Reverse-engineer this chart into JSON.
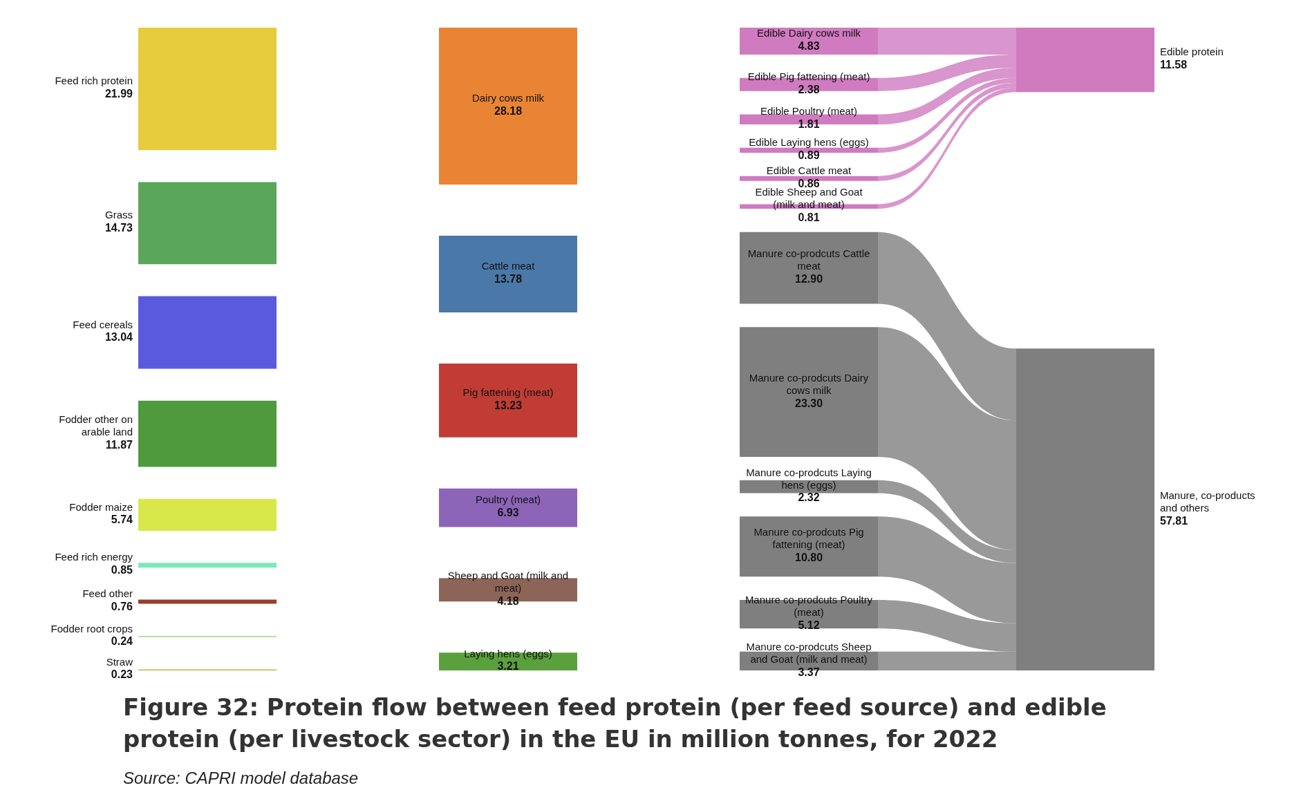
{
  "chart_data": {
    "type": "other",
    "title": "Figure 32: Protein flow between feed protein (per feed source) and edible protein (per livestock sector) in the EU in million tonnes, for 2022",
    "categories": [
      "Feed rich protein",
      "Grass",
      "Feed cereals",
      "Fodder other on arable land",
      "Fodder maize",
      "Feed rich energy",
      "Feed other",
      "Fodder root crops",
      "Straw",
      "Dairy cows milk",
      "Cattle meat",
      "Pig fattening (meat)",
      "Poultry (meat)",
      "Sheep and Goat (milk and meat)",
      "Laying hens (eggs)",
      "Edible Dairy cows milk",
      "Edible Pig fattening (meat)",
      "Edible Poultry (meat)",
      "Edible Laying hens (eggs)",
      "Edible Cattle meat",
      "Edible Sheep and Goat (milk and meat)",
      "Manure co-prodcuts Cattle meat",
      "Manure co-prodcuts Dairy cows milk",
      "Manure co-prodcuts Laying hens (eggs)",
      "Manure co-prodcuts Pig fattening (meat)",
      "Manure co-prodcuts Poultry (meat)",
      "Manure co-prodcuts Sheep and Goat (milk and meat)",
      "Edible protein",
      "Manure, co-products and others"
    ],
    "series": [
      {
        "values": [
          21.99,
          14.73,
          13.04,
          11.87,
          5.74,
          0.85,
          0.76,
          0.24,
          0.23,
          null,
          null,
          null,
          null,
          null,
          null,
          null,
          null,
          null,
          null,
          null,
          null,
          null,
          null,
          null,
          null,
          null,
          null,
          null,
          null
        ],
        "value_labels": [
          "21.99",
          "14.73",
          "13.04",
          "11.87",
          "5.74",
          "0.85",
          "0.76",
          "0.24",
          "0.23",
          null,
          null,
          null,
          null,
          null,
          null,
          null,
          null,
          null,
          null,
          null,
          null,
          null,
          null,
          null,
          null,
          null,
          null,
          null,
          null
        ],
        "colors": [
          "#e6cc3c",
          "#5aa65a",
          "#5a5ade",
          "#4e9a3c",
          "#d8e84a",
          "#7de8b8",
          "#9a3c2c",
          "#b8e0a0",
          "#c8c870",
          null,
          null,
          null,
          null,
          null,
          null,
          null,
          null,
          null,
          null,
          null,
          null,
          null,
          null,
          null,
          null,
          null,
          null,
          null,
          null
        ]
      },
      {
        "values": [
          null,
          null,
          null,
          null,
          null,
          null,
          null,
          null,
          null,
          28.18,
          13.78,
          13.23,
          6.93,
          4.18,
          3.21,
          null,
          null,
          null,
          null,
          null,
          null,
          null,
          null,
          null,
          null,
          null,
          null,
          null,
          null
        ],
        "value_labels": [
          null,
          null,
          null,
          null,
          null,
          null,
          null,
          null,
          null,
          "28.18",
          "13.78",
          "13.23",
          "6.93",
          "4.18",
          "3.21",
          null,
          null,
          null,
          null,
          null,
          null,
          null,
          null,
          null,
          null,
          null,
          null,
          null,
          null
        ],
        "colors": [
          null,
          null,
          null,
          null,
          null,
          null,
          null,
          null,
          null,
          "#e88434",
          "#4a78a8",
          "#c03c34",
          "#8c64b8",
          "#8c6458",
          "#5aa03c",
          null,
          null,
          null,
          null,
          null,
          null,
          null,
          null,
          null,
          null,
          null,
          null,
          null,
          null
        ]
      },
      {
        "values": [
          null,
          null,
          null,
          null,
          null,
          null,
          null,
          null,
          null,
          null,
          null,
          null,
          null,
          null,
          null,
          4.83,
          2.38,
          1.81,
          0.89,
          0.86,
          0.81,
          12.9,
          23.3,
          2.32,
          10.8,
          5.12,
          3.37,
          null,
          null
        ],
        "value_labels": [
          null,
          null,
          null,
          null,
          null,
          null,
          null,
          null,
          null,
          null,
          null,
          null,
          null,
          null,
          null,
          "4.83",
          "2.38",
          "1.81",
          "0.89",
          "0.86",
          "0.81",
          "12.90",
          "23.30",
          "2.32",
          "10.80",
          "5.12",
          "3.37",
          null,
          null
        ],
        "colors": [
          null,
          null,
          null,
          null,
          null,
          null,
          null,
          null,
          null,
          null,
          null,
          null,
          null,
          null,
          null,
          "#d07ac0",
          "#d07ac0",
          "#d07ac0",
          "#d07ac0",
          "#d07ac0",
          "#d07ac0",
          "#7f7f7f",
          "#7f7f7f",
          "#7f7f7f",
          "#7f7f7f",
          "#7f7f7f",
          "#7f7f7f",
          null,
          null
        ]
      },
      {
        "values": [
          null,
          null,
          null,
          null,
          null,
          null,
          null,
          null,
          null,
          null,
          null,
          null,
          null,
          null,
          null,
          null,
          null,
          null,
          null,
          null,
          null,
          null,
          null,
          null,
          null,
          null,
          null,
          11.58,
          57.81
        ],
        "value_labels": [
          null,
          null,
          null,
          null,
          null,
          null,
          null,
          null,
          null,
          null,
          null,
          null,
          null,
          null,
          null,
          null,
          null,
          null,
          null,
          null,
          null,
          null,
          null,
          null,
          null,
          null,
          null,
          "11.58",
          "57.81"
        ],
        "colors": [
          null,
          null,
          null,
          null,
          null,
          null,
          null,
          null,
          null,
          null,
          null,
          null,
          null,
          null,
          null,
          null,
          null,
          null,
          null,
          null,
          null,
          null,
          null,
          null,
          null,
          null,
          null,
          "#d07ac0",
          "#7f7f7f"
        ]
      }
    ],
    "annotations": [
      "Source: CAPRI model database"
    ]
  }
}
